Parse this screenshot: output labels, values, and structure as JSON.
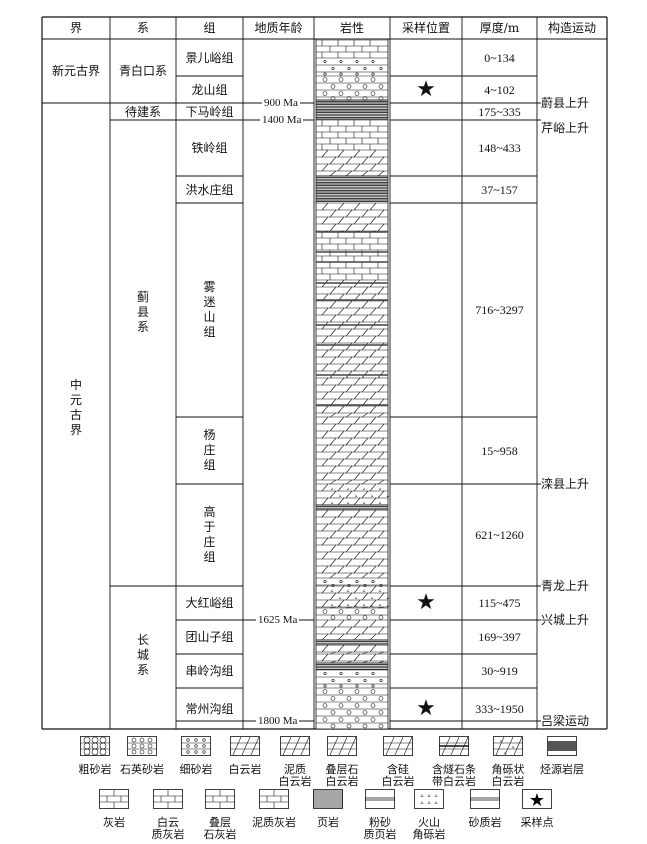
{
  "headers": [
    "界",
    "系",
    "组",
    "地质年龄",
    "岩性",
    "采样位置",
    "厚度/m",
    "构造运动"
  ],
  "erathems": [
    "新元古界",
    "中元古界"
  ],
  "systems": [
    "青白口系",
    "待建系",
    "蓟县系",
    "长城系"
  ],
  "formations": [
    {
      "name": "景儿峪组",
      "thickness": "0~134",
      "sampled": false
    },
    {
      "name": "龙山组",
      "thickness": "4~102",
      "sampled": true
    },
    {
      "name": "下马岭组",
      "thickness": "175~335",
      "sampled": false
    },
    {
      "name": "铁岭组",
      "thickness": "148~433",
      "sampled": false
    },
    {
      "name": "洪水庄组",
      "thickness": "37~157",
      "sampled": false
    },
    {
      "name": "雾迷山组",
      "thickness": "716~3297",
      "sampled": false
    },
    {
      "name": "杨庄组",
      "thickness": "15~958",
      "sampled": false
    },
    {
      "name": "高于庄组",
      "thickness": "621~1260",
      "sampled": false
    },
    {
      "name": "大红峪组",
      "thickness": "115~475",
      "sampled": true
    },
    {
      "name": "团山子组",
      "thickness": "169~397",
      "sampled": false
    },
    {
      "name": "串岭沟组",
      "thickness": "30~919",
      "sampled": false
    },
    {
      "name": "常州沟组",
      "thickness": "333~1950",
      "sampled": true
    }
  ],
  "ages": [
    "900 Ma",
    "1400 Ma",
    "1625 Ma",
    "1800 Ma"
  ],
  "tectonic_events": [
    "蔚县上升",
    "芹峪上升",
    "滦县上升",
    "青龙上升",
    "兴城上升",
    "吕梁运动"
  ],
  "legend": [
    {
      "label": "粗砂岩",
      "icon": "coarse-sandstone"
    },
    {
      "label": "石英砂岩",
      "icon": "quartz-sandstone"
    },
    {
      "label": "细砂岩",
      "icon": "fine-sandstone"
    },
    {
      "label": "白云岩",
      "icon": "dolomite"
    },
    {
      "label": "泥质\n白云岩",
      "icon": "argillaceous-dolomite"
    },
    {
      "label": "叠层石\n白云岩",
      "icon": "stromatolitic-dolomite"
    },
    {
      "label": "含硅\n白云岩",
      "icon": "siliceous-dolomite"
    },
    {
      "label": "含燧石条\n带白云岩",
      "icon": "chert-band-dolomite"
    },
    {
      "label": "角砾状\n白云岩",
      "icon": "brecciated-dolomite"
    },
    {
      "label": "烃源岩层",
      "icon": "source-rock"
    },
    {
      "label": "灰岩",
      "icon": "limestone"
    },
    {
      "label": "白云\n质灰岩",
      "icon": "dolomitic-limestone"
    },
    {
      "label": "叠层\n石灰岩",
      "icon": "stromatolitic-limestone"
    },
    {
      "label": "泥质灰岩",
      "icon": "argillaceous-limestone"
    },
    {
      "label": "页岩",
      "icon": "shale"
    },
    {
      "label": "粉砂\n质页岩",
      "icon": "silty-shale"
    },
    {
      "label": "火山\n角砾岩",
      "icon": "volcanic-breccia"
    },
    {
      "label": "砂质岩",
      "icon": "sandy-rock"
    },
    {
      "label": "采样点",
      "icon": "star"
    }
  ],
  "colors": {
    "line": "#111111",
    "source_rock": "#555555"
  }
}
